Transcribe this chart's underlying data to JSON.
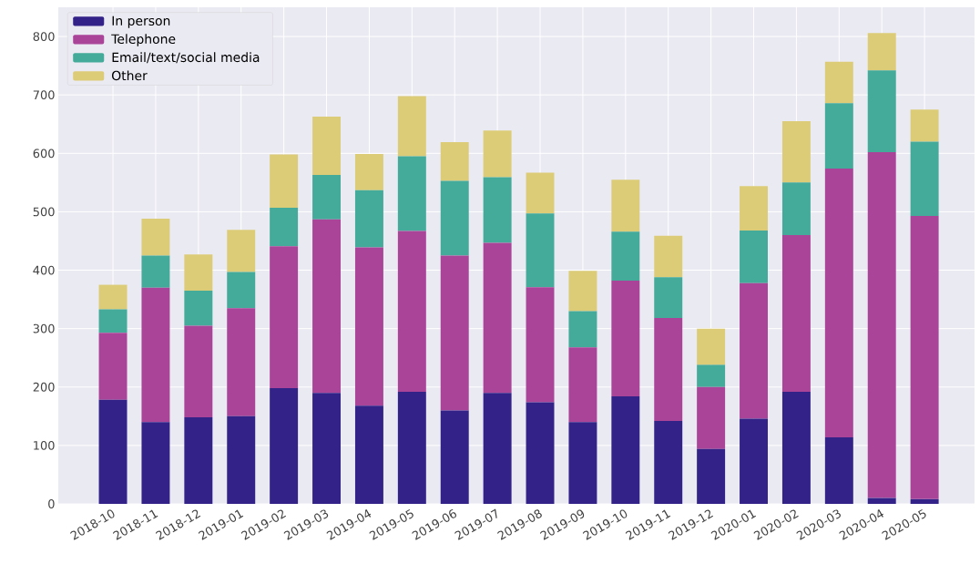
{
  "chart_data": {
    "type": "bar",
    "stacked": true,
    "categories": [
      "2018-10",
      "2018-11",
      "2018-12",
      "2019-01",
      "2019-02",
      "2019-03",
      "2019-04",
      "2019-05",
      "2019-06",
      "2019-07",
      "2019-08",
      "2019-09",
      "2019-10",
      "2019-11",
      "2019-12",
      "2020-01",
      "2020-02",
      "2020-03",
      "2020-04",
      "2020-05"
    ],
    "series": [
      {
        "name": "In person",
        "color": "#332288",
        "values": [
          178,
          140,
          148,
          150,
          198,
          190,
          168,
          192,
          160,
          190,
          174,
          140,
          184,
          142,
          94,
          146,
          192,
          114,
          10,
          8
        ]
      },
      {
        "name": "Telephone",
        "color": "#aa4499",
        "values": [
          115,
          230,
          157,
          185,
          243,
          297,
          271,
          275,
          265,
          257,
          197,
          128,
          198,
          176,
          106,
          232,
          268,
          460,
          592,
          485
        ]
      },
      {
        "name": "Email/text/social media",
        "color": "#44aa99",
        "values": [
          40,
          55,
          60,
          62,
          66,
          76,
          98,
          128,
          128,
          112,
          126,
          62,
          84,
          70,
          38,
          90,
          90,
          112,
          140,
          127
        ]
      },
      {
        "name": "Other",
        "color": "#ddcc77",
        "values": [
          42,
          63,
          62,
          72,
          91,
          100,
          62,
          103,
          66,
          80,
          70,
          69,
          89,
          71,
          62,
          76,
          105,
          71,
          64,
          55
        ]
      }
    ],
    "ylim": [
      0,
      850
    ],
    "yticks": [
      0,
      100,
      200,
      300,
      400,
      500,
      600,
      700,
      800
    ],
    "grid": true,
    "legend": "top left"
  }
}
